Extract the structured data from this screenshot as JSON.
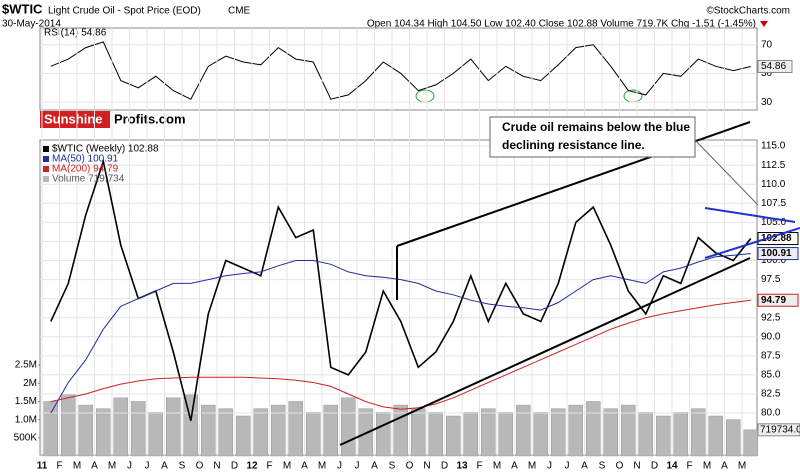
{
  "header": {
    "symbol": "$WTIC",
    "title": "Light Crude Oil - Spot Price (EOD)",
    "exchange": "CME",
    "date": "30-May-2014",
    "quote": "Open 104.34 High 104.50 Low 102.40 Close 102.88 Volume 719.7K Chg -1.51 (-1.45%)",
    "copyright": "©StockCharts.com"
  },
  "logo": {
    "left": "Sunshine",
    "right": "Profits.com"
  },
  "chart_data": [
    {
      "type": "line",
      "title": "RSI(14) 54.86",
      "color": "#000000",
      "ylim": [
        24.5,
        81.7
      ],
      "yticks": [
        30,
        50,
        70
      ],
      "values": [
        55,
        60,
        68,
        72,
        45,
        40,
        48,
        38,
        32,
        55,
        62,
        58,
        56,
        68,
        60,
        58,
        32,
        35,
        45,
        58,
        50,
        38,
        42,
        50,
        60,
        45,
        55,
        48,
        45,
        56,
        68,
        70,
        55,
        38,
        35,
        50,
        48,
        60,
        55,
        52,
        54.86
      ],
      "last_value": 54.86
    },
    {
      "type": "line",
      "annotations": [
        "Crude oil remains below the blue",
        "declining resistance line."
      ],
      "categories": [
        "11",
        "F",
        "M",
        "A",
        "M",
        "J",
        "J",
        "A",
        "S",
        "O",
        "N",
        "D",
        "12",
        "F",
        "M",
        "A",
        "M",
        "J",
        "J",
        "A",
        "S",
        "O",
        "N",
        "D",
        "13",
        "F",
        "M",
        "A",
        "M",
        "J",
        "J",
        "A",
        "S",
        "O",
        "N",
        "D",
        "14",
        "F",
        "M",
        "A",
        "M"
      ],
      "ylim": [
        74.5,
        115.8
      ],
      "yticks": [
        {
          "value": 80,
          "label": "80.0"
        },
        {
          "value": 82.5,
          "label": "82.5"
        },
        {
          "value": 85,
          "label": "85.0"
        },
        {
          "value": 87.5,
          "label": "87.5"
        },
        {
          "value": 90,
          "label": "90.0"
        },
        {
          "value": 92.5,
          "label": "92.5"
        },
        {
          "value": 95,
          "label": "95.0"
        },
        {
          "value": 97.5,
          "label": "97.5"
        },
        {
          "value": 100,
          "label": "100.0"
        },
        {
          "value": 102.5,
          "label": "102.5"
        },
        {
          "value": 105,
          "label": "105.0"
        },
        {
          "value": 107.5,
          "label": "107.5"
        },
        {
          "value": 110,
          "label": "110.0"
        },
        {
          "value": 112.5,
          "label": "112.5"
        },
        {
          "value": 115,
          "label": "115.0"
        }
      ],
      "grid": true,
      "series": [
        {
          "name": "$WTIC (Weekly) 102.88",
          "color": "#000000",
          "last_value": 102.88,
          "values": [
            92,
            97,
            106,
            113,
            102,
            95,
            96,
            88,
            79,
            93,
            100,
            99,
            98,
            107,
            103,
            104,
            86,
            85,
            88,
            96,
            92,
            86,
            88,
            92,
            98,
            92,
            97,
            93,
            92,
            97,
            105,
            107,
            102,
            96,
            93,
            98,
            97,
            103,
            101,
            100,
            102.88
          ]
        },
        {
          "name": "MA(50) 100.91",
          "color": "#1f2ea0",
          "last_value": 100.91,
          "values": [
            80,
            84,
            87,
            91,
            94,
            95,
            96,
            97,
            97,
            97.5,
            98,
            98.3,
            98.5,
            99.3,
            100,
            100,
            99.5,
            98.5,
            98,
            97.8,
            97.5,
            97,
            96,
            95.5,
            94.8,
            94.3,
            94,
            93.8,
            93.5,
            94.5,
            96,
            97.5,
            98,
            97.5,
            97,
            98.5,
            99,
            99.8,
            100.5,
            100.7,
            100.91
          ]
        },
        {
          "name": "MA(200) 94.79",
          "color": "#cc2222",
          "last_value": 94.79,
          "values": [
            81.5,
            82,
            82.5,
            83.2,
            83.8,
            84.2,
            84.5,
            84.6,
            84.7,
            84.7,
            84.7,
            84.7,
            84.6,
            84.5,
            84.3,
            84,
            83.5,
            82.5,
            81.5,
            80.8,
            80.5,
            80.7,
            81.2,
            82,
            83,
            84,
            85,
            86,
            87,
            88,
            89,
            90,
            91,
            91.8,
            92.5,
            93,
            93.4,
            93.8,
            94.2,
            94.5,
            94.79
          ]
        }
      ]
    },
    {
      "type": "bar",
      "name": "Volume 719,734",
      "color": "#b8b8b8",
      "last_value": 719734,
      "last_label": "719734.0",
      "ylim": [
        0,
        3190000
      ],
      "yticks": [
        {
          "value": 500000,
          "label": "500K"
        },
        {
          "value": 1000000,
          "label": "1.0M"
        },
        {
          "value": 1500000,
          "label": "1.5M"
        },
        {
          "value": 2000000,
          "label": "2M"
        },
        {
          "value": 2500000,
          "label": "2.5M"
        }
      ],
      "values": [
        1500000,
        1700000,
        1400000,
        1300000,
        1600000,
        1500000,
        1200000,
        1600000,
        1700000,
        1400000,
        1300000,
        1100000,
        1300000,
        1400000,
        1500000,
        1200000,
        1400000,
        1600000,
        1300000,
        1200000,
        1400000,
        1300000,
        1200000,
        1100000,
        1200000,
        1300000,
        1200000,
        1400000,
        1200000,
        1300000,
        1400000,
        1500000,
        1300000,
        1400000,
        1200000,
        1100000,
        1200000,
        1300000,
        1100000,
        1000000,
        719734
      ]
    }
  ]
}
